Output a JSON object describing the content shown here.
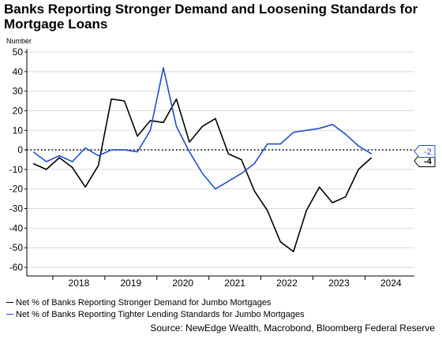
{
  "title": "Banks Reporting Stronger Demand and Loosening Standards for Mortgage Loans",
  "unit_label": "Number",
  "source": "Source: NewEdge Wealth, Macrobond, Bloomberg Federal Reserve",
  "colors": {
    "demand": "#000000",
    "standards": "#1f4fc8",
    "text": "#000000",
    "gridline": "#d9d9d9"
  },
  "chart_data": {
    "type": "line",
    "ylim": [
      -60,
      50
    ],
    "yticks": [
      50,
      40,
      30,
      20,
      10,
      0,
      -10,
      -20,
      -30,
      -40,
      -50,
      -60
    ],
    "xlim": [
      2017.5,
      2024.95
    ],
    "year_labels": [
      "2018",
      "2019",
      "2020",
      "2021",
      "2022",
      "2023",
      "2024"
    ],
    "reference_line": {
      "y": 0,
      "style": "dotted"
    },
    "grid": "horizontal",
    "series": [
      {
        "name": "Net % of Banks Reporting Stronger Demand for Jumbo Mortgages",
        "color_key": "demand",
        "end_label": "-4",
        "x": [
          2017.625,
          2017.875,
          2018.125,
          2018.375,
          2018.625,
          2018.875,
          2019.125,
          2019.375,
          2019.625,
          2019.875,
          2020.125,
          2020.375,
          2020.625,
          2020.875,
          2021.125,
          2021.375,
          2021.625,
          2021.875,
          2022.125,
          2022.375,
          2022.625,
          2022.875,
          2023.125,
          2023.375,
          2023.625,
          2023.875,
          2024.125,
          2024.375,
          2024.625
        ],
        "values": [
          -7,
          -10,
          -4,
          -9,
          -19,
          -8,
          26,
          25,
          7,
          15,
          14,
          26,
          4,
          12,
          16,
          -2,
          -5,
          -21,
          -31,
          -47,
          -52,
          -31,
          -19,
          -27,
          -24,
          -10,
          -4,
          null,
          null
        ]
      },
      {
        "name": "Net % of Banks Reporting Tighter Lending Standards for Jumbo Mortgages",
        "color_key": "standards",
        "end_label": "-2",
        "x": [
          2017.625,
          2017.875,
          2018.125,
          2018.375,
          2018.625,
          2018.875,
          2019.125,
          2019.375,
          2019.625,
          2019.875,
          2020.125,
          2020.375,
          2020.625,
          2020.875,
          2021.125,
          2021.375,
          2021.625,
          2021.875,
          2022.125,
          2022.375,
          2022.625,
          2022.875,
          2023.125,
          2023.375,
          2023.625,
          2023.875,
          2024.125,
          2024.375,
          2024.625
        ],
        "values": [
          -1,
          -6,
          -3,
          -6,
          1,
          -3,
          0,
          0,
          -1,
          10,
          42,
          12,
          -1,
          -12,
          -20,
          -16,
          -12,
          -7,
          3,
          3,
          9,
          10,
          11,
          13,
          8,
          2,
          -2,
          null,
          null
        ]
      }
    ]
  }
}
